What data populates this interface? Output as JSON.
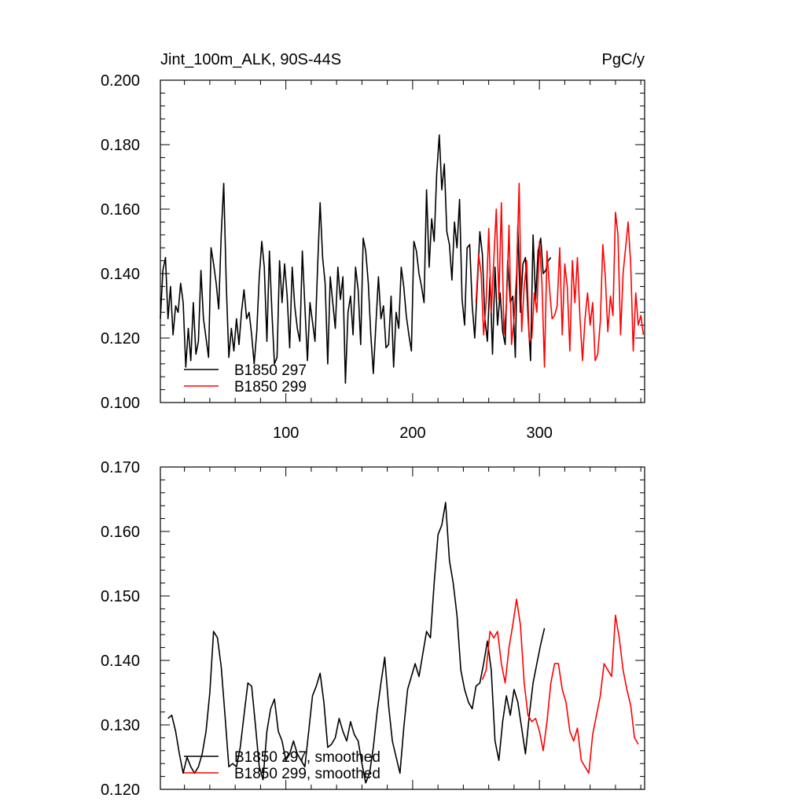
{
  "colors": {
    "series_1": "#000000",
    "series_2": "#ff0000",
    "axis": "#000000",
    "background": "#ffffff"
  },
  "chart_data": [
    {
      "type": "line",
      "title": "Jint_100m_ALK, 90S-44S",
      "units": "PgC/y",
      "xlim": [
        1,
        383
      ],
      "ylim": [
        0.1,
        0.2
      ],
      "x_ticks": [
        100,
        200,
        300
      ],
      "x_tick_labels": [
        "100",
        "200",
        "300"
      ],
      "y_ticks": [
        0.1,
        0.12,
        0.14,
        0.16,
        0.18,
        0.2
      ],
      "y_tick_labels": [
        "0.100",
        "0.120",
        "0.140",
        "0.160",
        "0.180",
        "0.200"
      ],
      "grid": false,
      "legend_position": "bottom-left",
      "series": [
        {
          "name": "B1850 297",
          "color": "#000000",
          "x": [
            1,
            3,
            5,
            7,
            9,
            11,
            13,
            15,
            17,
            19,
            21,
            23,
            25,
            27,
            29,
            31,
            33,
            35,
            37,
            39,
            41,
            43,
            45,
            47,
            49,
            51,
            53,
            55,
            57,
            59,
            61,
            63,
            65,
            67,
            69,
            71,
            73,
            75,
            77,
            79,
            81,
            83,
            85,
            87,
            89,
            91,
            93,
            95,
            97,
            99,
            101,
            103,
            105,
            107,
            109,
            111,
            113,
            115,
            117,
            119,
            121,
            123,
            125,
            127,
            129,
            131,
            133,
            135,
            137,
            139,
            141,
            143,
            145,
            147,
            149,
            151,
            153,
            155,
            157,
            159,
            161,
            163,
            165,
            167,
            169,
            171,
            173,
            175,
            177,
            179,
            181,
            183,
            185,
            187,
            189,
            191,
            193,
            195,
            197,
            199,
            201,
            203,
            205,
            207,
            209,
            211,
            213,
            215,
            217,
            219,
            221,
            223,
            225,
            227,
            229,
            231,
            233,
            235,
            237,
            239,
            241,
            243,
            245,
            247,
            249,
            251,
            253,
            255,
            257,
            259,
            261,
            263,
            265,
            267,
            269,
            271,
            273,
            275,
            277,
            279,
            281,
            283,
            285,
            287,
            289,
            291,
            293,
            295,
            297,
            299,
            301,
            303,
            305,
            307,
            309
          ],
          "values": [
            0.126,
            0.141,
            0.145,
            0.126,
            0.136,
            0.121,
            0.13,
            0.128,
            0.137,
            0.131,
            0.111,
            0.123,
            0.113,
            0.131,
            0.115,
            0.119,
            0.141,
            0.126,
            0.12,
            0.114,
            0.148,
            0.143,
            0.137,
            0.129,
            0.152,
            0.168,
            0.136,
            0.114,
            0.123,
            0.116,
            0.126,
            0.118,
            0.128,
            0.135,
            0.126,
            0.128,
            0.121,
            0.112,
            0.122,
            0.139,
            0.15,
            0.142,
            0.119,
            0.147,
            0.128,
            0.112,
            0.114,
            0.144,
            0.131,
            0.143,
            0.133,
            0.117,
            0.142,
            0.13,
            0.123,
            0.119,
            0.147,
            0.13,
            0.113,
            0.131,
            0.125,
            0.119,
            0.142,
            0.162,
            0.145,
            0.137,
            0.112,
            0.139,
            0.131,
            0.123,
            0.142,
            0.132,
            0.139,
            0.106,
            0.128,
            0.133,
            0.121,
            0.142,
            0.135,
            0.118,
            0.151,
            0.147,
            0.137,
            0.121,
            0.109,
            0.124,
            0.139,
            0.126,
            0.13,
            0.117,
            0.118,
            0.133,
            0.111,
            0.128,
            0.123,
            0.142,
            0.136,
            0.127,
            0.121,
            0.116,
            0.15,
            0.147,
            0.14,
            0.136,
            0.131,
            0.166,
            0.142,
            0.157,
            0.15,
            0.171,
            0.183,
            0.166,
            0.174,
            0.153,
            0.149,
            0.138,
            0.156,
            0.148,
            0.163,
            0.132,
            0.124,
            0.148,
            0.149,
            0.13,
            0.12,
            0.136,
            0.153,
            0.146,
            0.126,
            0.119,
            0.139,
            0.115,
            0.142,
            0.124,
            0.134,
            0.122,
            0.118,
            0.144,
            0.131,
            0.133,
            0.114,
            0.155,
            0.128,
            0.143,
            0.145,
            0.127,
            0.113,
            0.152,
            0.132,
            0.147,
            0.151,
            0.14,
            0.141,
            0.144,
            0.145
          ]
        },
        {
          "name": "B1850 299",
          "color": "#ff0000",
          "x": [
            250,
            252,
            254,
            256,
            258,
            260,
            262,
            264,
            266,
            268,
            270,
            272,
            274,
            276,
            278,
            280,
            282,
            284,
            286,
            288,
            290,
            292,
            294,
            296,
            298,
            300,
            302,
            304,
            306,
            308,
            310,
            312,
            314,
            316,
            318,
            320,
            322,
            324,
            326,
            328,
            330,
            332,
            334,
            336,
            338,
            340,
            342,
            344,
            346,
            348,
            350,
            352,
            354,
            356,
            358,
            360,
            362,
            364,
            366,
            368,
            370,
            372,
            374,
            376,
            378,
            380,
            382
          ],
          "values": [
            0.131,
            0.146,
            0.14,
            0.121,
            0.131,
            0.154,
            0.128,
            0.144,
            0.16,
            0.132,
            0.162,
            0.121,
            0.13,
            0.155,
            0.118,
            0.126,
            0.14,
            0.168,
            0.122,
            0.136,
            0.144,
            0.119,
            0.12,
            0.134,
            0.128,
            0.15,
            0.137,
            0.111,
            0.147,
            0.135,
            0.126,
            0.127,
            0.13,
            0.148,
            0.121,
            0.143,
            0.136,
            0.116,
            0.144,
            0.131,
            0.145,
            0.126,
            0.113,
            0.126,
            0.134,
            0.124,
            0.131,
            0.113,
            0.115,
            0.125,
            0.149,
            0.139,
            0.122,
            0.133,
            0.127,
            0.159,
            0.152,
            0.121,
            0.14,
            0.148,
            0.156,
            0.143,
            0.116,
            0.134,
            0.124,
            0.127,
            0.121
          ]
        }
      ]
    },
    {
      "type": "line",
      "xlim": [
        1,
        383
      ],
      "ylim": [
        0.12,
        0.17
      ],
      "x_ticks": [
        100,
        200,
        300
      ],
      "y_ticks": [
        0.12,
        0.13,
        0.14,
        0.15,
        0.16,
        0.17
      ],
      "y_tick_labels": [
        "0.120",
        "0.130",
        "0.140",
        "0.150",
        "0.160",
        "0.170"
      ],
      "grid": false,
      "legend_position": "bottom-left",
      "series": [
        {
          "name": "B1850 297, smoothed",
          "color": "#000000",
          "x": [
            7,
            10,
            13,
            16,
            19,
            22,
            25,
            28,
            31,
            34,
            37,
            40,
            43,
            46,
            49,
            52,
            55,
            58,
            61,
            64,
            67,
            70,
            73,
            76,
            79,
            82,
            85,
            88,
            91,
            94,
            97,
            100,
            103,
            106,
            109,
            112,
            115,
            118,
            121,
            124,
            127,
            130,
            133,
            136,
            139,
            142,
            145,
            148,
            151,
            154,
            157,
            160,
            163,
            166,
            169,
            172,
            175,
            178,
            181,
            184,
            187,
            190,
            193,
            196,
            199,
            202,
            205,
            208,
            211,
            214,
            217,
            220,
            223,
            226,
            229,
            232,
            235,
            238,
            241,
            244,
            247,
            250,
            253,
            256,
            259,
            262,
            265,
            268,
            271,
            274,
            277,
            280,
            283,
            286,
            289,
            292,
            295,
            298,
            301,
            304
          ],
          "values": [
            0.131,
            0.1315,
            0.129,
            0.1255,
            0.1225,
            0.125,
            0.1235,
            0.1225,
            0.1235,
            0.1255,
            0.129,
            0.135,
            0.1445,
            0.1435,
            0.139,
            0.1315,
            0.1235,
            0.124,
            0.1235,
            0.1265,
            0.1315,
            0.1365,
            0.136,
            0.13,
            0.1235,
            0.1215,
            0.129,
            0.1325,
            0.134,
            0.129,
            0.1275,
            0.1245,
            0.1255,
            0.1275,
            0.1255,
            0.1245,
            0.1235,
            0.129,
            0.1345,
            0.136,
            0.138,
            0.1335,
            0.1265,
            0.127,
            0.128,
            0.131,
            0.129,
            0.1275,
            0.1305,
            0.1285,
            0.1275,
            0.124,
            0.121,
            0.1225,
            0.1265,
            0.132,
            0.1365,
            0.1405,
            0.133,
            0.1275,
            0.125,
            0.1225,
            0.1295,
            0.1355,
            0.1375,
            0.1395,
            0.1375,
            0.141,
            0.1445,
            0.1435,
            0.152,
            0.1595,
            0.161,
            0.1645,
            0.1555,
            0.152,
            0.147,
            0.1385,
            0.1355,
            0.1335,
            0.1325,
            0.136,
            0.1365,
            0.1395,
            0.143,
            0.1385,
            0.1275,
            0.1245,
            0.1305,
            0.1345,
            0.1315,
            0.1355,
            0.1335,
            0.1295,
            0.1255,
            0.1315,
            0.1365,
            0.1395,
            0.1425,
            0.145
          ]
        },
        {
          "name": "B1850 299, smoothed",
          "color": "#ff0000",
          "x": [
            255,
            258,
            261,
            264,
            267,
            270,
            273,
            276,
            279,
            282,
            285,
            288,
            291,
            294,
            297,
            300,
            303,
            306,
            309,
            312,
            315,
            318,
            321,
            324,
            327,
            330,
            333,
            336,
            339,
            342,
            345,
            348,
            351,
            354,
            357,
            360,
            363,
            366,
            369,
            372,
            375,
            378
          ],
          "values": [
            0.137,
            0.1385,
            0.1445,
            0.1435,
            0.1445,
            0.1395,
            0.1365,
            0.142,
            0.1455,
            0.1495,
            0.1455,
            0.1365,
            0.1315,
            0.1305,
            0.131,
            0.129,
            0.126,
            0.1305,
            0.1365,
            0.1395,
            0.1395,
            0.1355,
            0.1335,
            0.129,
            0.1275,
            0.1295,
            0.1245,
            0.1235,
            0.1225,
            0.1285,
            0.1315,
            0.1345,
            0.1395,
            0.1385,
            0.1375,
            0.147,
            0.1435,
            0.1385,
            0.1355,
            0.133,
            0.128,
            0.127
          ]
        }
      ]
    }
  ]
}
